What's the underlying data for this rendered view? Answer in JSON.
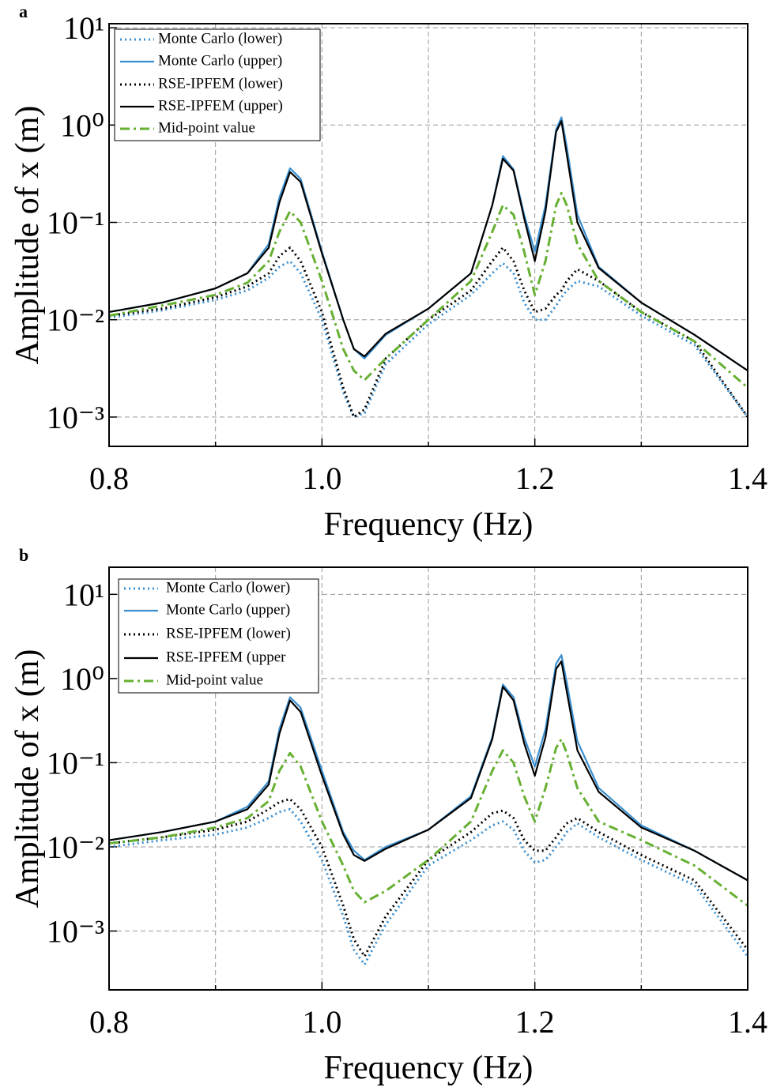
{
  "chart_data": [
    {
      "type": "line",
      "panel_label": "a",
      "xlabel": "Frequency (Hz)",
      "ylabel": "Amplitude of x (m)",
      "log_y": true,
      "grid": true,
      "xlim": [
        0.8,
        1.4
      ],
      "xticks": [
        0.8,
        {
          "value": 1,
          "label": "1.0"
        },
        1.2,
        1.4
      ],
      "x_minor_ticks": [
        0.9,
        1.1,
        1.3
      ],
      "ylim": [
        0.0005,
        11
      ],
      "yticks": [
        {
          "value": 0.001,
          "label": "10⁻³"
        },
        {
          "value": 0.01,
          "label": "10⁻²"
        },
        {
          "value": 0.1,
          "label": "10⁻¹"
        },
        {
          "value": 1,
          "label": "10⁰"
        },
        {
          "value": 10,
          "label": "10¹"
        }
      ],
      "x": [
        0.8,
        0.85,
        0.9,
        0.93,
        0.95,
        0.96,
        0.97,
        0.98,
        1.0,
        1.02,
        1.03,
        1.04,
        1.06,
        1.1,
        1.14,
        1.16,
        1.17,
        1.18,
        1.19,
        1.2,
        1.21,
        1.22,
        1.225,
        1.23,
        1.24,
        1.26,
        1.3,
        1.35,
        1.4
      ],
      "series": [
        {
          "name": "Monte Carlo (lower)",
          "color": "#3a8fd0",
          "style": "dotted",
          "values": [
            0.0105,
            0.0125,
            0.016,
            0.02,
            0.027,
            0.035,
            0.04,
            0.03,
            0.01,
            0.0018,
            0.001,
            0.0011,
            0.0035,
            0.009,
            0.018,
            0.03,
            0.038,
            0.03,
            0.015,
            0.01,
            0.01,
            0.014,
            0.017,
            0.02,
            0.025,
            0.022,
            0.011,
            0.0055,
            0.001
          ]
        },
        {
          "name": "Monte Carlo (upper)",
          "color": "#3a8fd0",
          "style": "solid",
          "values": [
            0.012,
            0.015,
            0.021,
            0.03,
            0.06,
            0.18,
            0.36,
            0.28,
            0.05,
            0.01,
            0.005,
            0.004,
            0.007,
            0.013,
            0.03,
            0.15,
            0.48,
            0.35,
            0.12,
            0.05,
            0.15,
            0.9,
            1.2,
            0.6,
            0.12,
            0.035,
            0.015,
            0.007,
            0.003
          ]
        },
        {
          "name": "RSE-IPFEM (lower)",
          "color": "#000000",
          "style": "dotted",
          "values": [
            0.011,
            0.013,
            0.017,
            0.022,
            0.03,
            0.045,
            0.055,
            0.04,
            0.012,
            0.002,
            0.001,
            0.0012,
            0.004,
            0.01,
            0.02,
            0.04,
            0.055,
            0.04,
            0.02,
            0.012,
            0.013,
            0.018,
            0.02,
            0.025,
            0.033,
            0.025,
            0.012,
            0.006,
            0.001
          ]
        },
        {
          "name": "RSE-IPFEM (upper)",
          "color": "#000000",
          "style": "solid",
          "values": [
            0.012,
            0.015,
            0.021,
            0.03,
            0.055,
            0.16,
            0.33,
            0.26,
            0.048,
            0.01,
            0.005,
            0.0042,
            0.0072,
            0.013,
            0.03,
            0.15,
            0.45,
            0.34,
            0.11,
            0.04,
            0.13,
            0.85,
            1.1,
            0.5,
            0.1,
            0.034,
            0.015,
            0.007,
            0.003
          ]
        },
        {
          "name": "Mid-point value",
          "color": "#66b032",
          "style": "dashdot",
          "values": [
            0.011,
            0.014,
            0.018,
            0.024,
            0.04,
            0.08,
            0.13,
            0.1,
            0.025,
            0.005,
            0.003,
            0.0024,
            0.004,
            0.01,
            0.025,
            0.08,
            0.15,
            0.12,
            0.05,
            0.018,
            0.04,
            0.15,
            0.2,
            0.15,
            0.06,
            0.025,
            0.012,
            0.006,
            0.002
          ]
        }
      ]
    },
    {
      "type": "line",
      "panel_label": "b",
      "xlabel": "Frequency (Hz)",
      "ylabel": "Amplitude of x (m)",
      "log_y": true,
      "grid": true,
      "xlim": [
        0.8,
        1.4
      ],
      "xticks": [
        0.8,
        {
          "value": 1,
          "label": "1.0"
        },
        1.2,
        1.4
      ],
      "x_minor_ticks": [
        0.9,
        1.1,
        1.3
      ],
      "ylim": [
        0.0002,
        21
      ],
      "yticks": [
        {
          "value": 0.001,
          "label": "10⁻³"
        },
        {
          "value": 0.01,
          "label": "10⁻²"
        },
        {
          "value": 0.1,
          "label": "10⁻¹"
        },
        {
          "value": 1,
          "label": "10⁰"
        },
        {
          "value": 10,
          "label": "10¹"
        }
      ],
      "x": [
        0.8,
        0.85,
        0.9,
        0.93,
        0.95,
        0.96,
        0.97,
        0.98,
        1.0,
        1.02,
        1.03,
        1.04,
        1.06,
        1.1,
        1.14,
        1.16,
        1.17,
        1.18,
        1.19,
        1.2,
        1.21,
        1.22,
        1.225,
        1.23,
        1.24,
        1.26,
        1.3,
        1.35,
        1.4
      ],
      "series": [
        {
          "name": "Monte Carlo (lower)",
          "color": "#3a8fd0",
          "style": "dotted",
          "values": [
            0.01,
            0.012,
            0.014,
            0.017,
            0.022,
            0.026,
            0.028,
            0.02,
            0.007,
            0.0015,
            0.0006,
            0.0004,
            0.0012,
            0.006,
            0.012,
            0.018,
            0.02,
            0.016,
            0.009,
            0.0065,
            0.007,
            0.01,
            0.012,
            0.015,
            0.019,
            0.013,
            0.007,
            0.0035,
            0.0005
          ]
        },
        {
          "name": "Monte Carlo (upper)",
          "color": "#3a8fd0",
          "style": "solid",
          "values": [
            0.012,
            0.015,
            0.02,
            0.03,
            0.06,
            0.25,
            0.6,
            0.45,
            0.08,
            0.015,
            0.009,
            0.007,
            0.01,
            0.016,
            0.04,
            0.2,
            0.85,
            0.6,
            0.2,
            0.09,
            0.25,
            1.5,
            1.9,
            0.9,
            0.18,
            0.05,
            0.018,
            0.009,
            0.004
          ]
        },
        {
          "name": "RSE-IPFEM (lower)",
          "color": "#000000",
          "style": "dotted",
          "values": [
            0.011,
            0.013,
            0.016,
            0.02,
            0.028,
            0.034,
            0.037,
            0.028,
            0.01,
            0.002,
            0.0008,
            0.0005,
            0.0015,
            0.007,
            0.015,
            0.025,
            0.027,
            0.022,
            0.012,
            0.009,
            0.009,
            0.013,
            0.016,
            0.019,
            0.022,
            0.015,
            0.008,
            0.004,
            0.0006
          ]
        },
        {
          "name": "RSE-IPFEM (upper",
          "color": "#000000",
          "style": "solid",
          "values": [
            0.012,
            0.015,
            0.02,
            0.028,
            0.055,
            0.22,
            0.55,
            0.4,
            0.07,
            0.014,
            0.008,
            0.0068,
            0.0095,
            0.016,
            0.038,
            0.19,
            0.8,
            0.55,
            0.17,
            0.07,
            0.2,
            1.3,
            1.6,
            0.7,
            0.14,
            0.045,
            0.017,
            0.009,
            0.004
          ]
        },
        {
          "name": "Mid-point value",
          "color": "#66b032",
          "style": "dashdot",
          "values": [
            0.011,
            0.013,
            0.017,
            0.022,
            0.035,
            0.08,
            0.13,
            0.09,
            0.02,
            0.006,
            0.003,
            0.0022,
            0.003,
            0.007,
            0.02,
            0.08,
            0.14,
            0.1,
            0.04,
            0.02,
            0.05,
            0.15,
            0.19,
            0.13,
            0.05,
            0.02,
            0.012,
            0.006,
            0.002
          ]
        }
      ]
    }
  ]
}
